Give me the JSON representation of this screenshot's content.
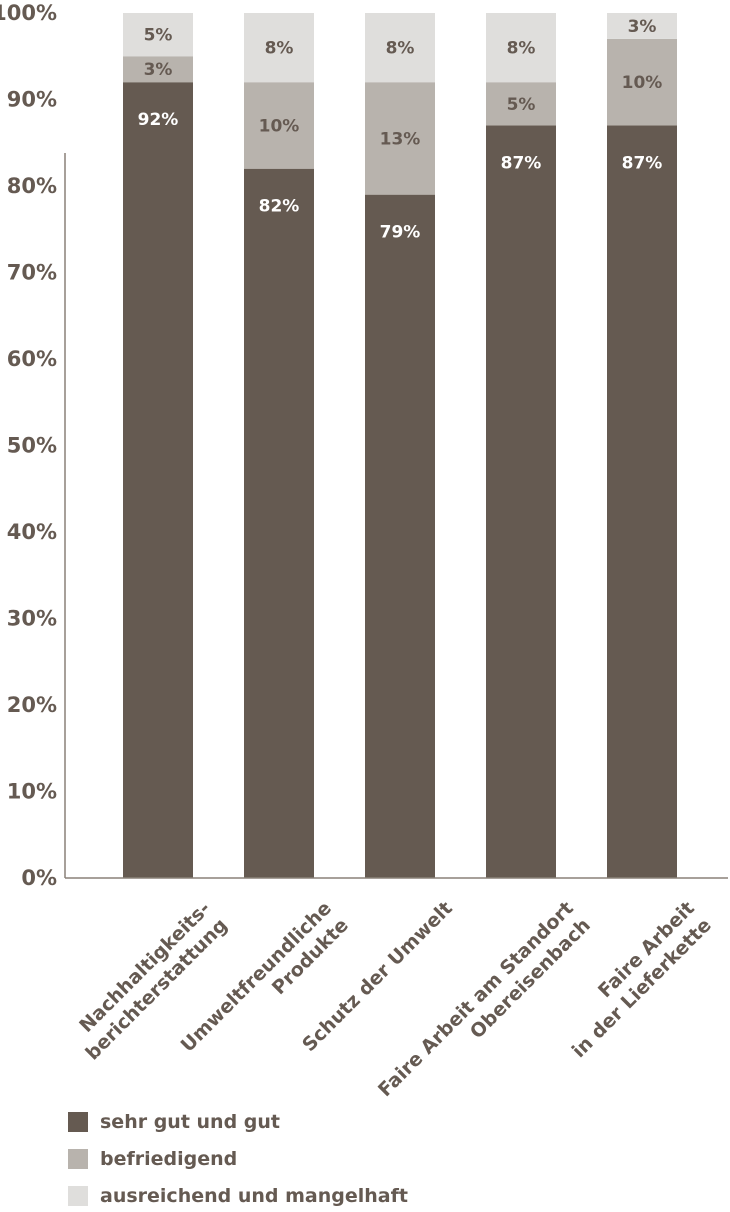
{
  "chart_data": {
    "type": "bar",
    "stacked": true,
    "ylim": [
      0,
      100
    ],
    "yticks": [
      "0%",
      "10%",
      "20%",
      "30%",
      "40%",
      "50%",
      "60%",
      "70%",
      "80%",
      "90%",
      "100%"
    ],
    "categories": [
      [
        "Nachhaltigkeits-",
        "berichterstattung"
      ],
      [
        "Umweltfreundliche",
        "Produkte"
      ],
      [
        "Schutz der Umwelt"
      ],
      [
        "Faire Arbeit am Standort",
        "Obereisenbach"
      ],
      [
        "Faire Arbeit",
        "in der Lieferkette"
      ]
    ],
    "series": [
      {
        "name": "sehr gut und gut",
        "color": "#655a51",
        "label_color": "#ffffff",
        "values": [
          92,
          82,
          79,
          87,
          87
        ],
        "labels": [
          "92%",
          "82%",
          "79%",
          "87%",
          "87%"
        ]
      },
      {
        "name": "befriedigend",
        "color": "#b8b3ad",
        "label_color": "#655a52",
        "values": [
          3,
          10,
          13,
          5,
          10
        ],
        "labels": [
          "3%",
          "10%",
          "13%",
          "5%",
          "10%"
        ]
      },
      {
        "name": "ausreichend und mangelhaft",
        "color": "#dfdedc",
        "label_color": "#655a52",
        "values": [
          5,
          8,
          8,
          8,
          3
        ],
        "labels": [
          "5%",
          "8%",
          "8%",
          "8%",
          "3%"
        ]
      }
    ],
    "legend_position": "bottom-left",
    "grid": false
  }
}
